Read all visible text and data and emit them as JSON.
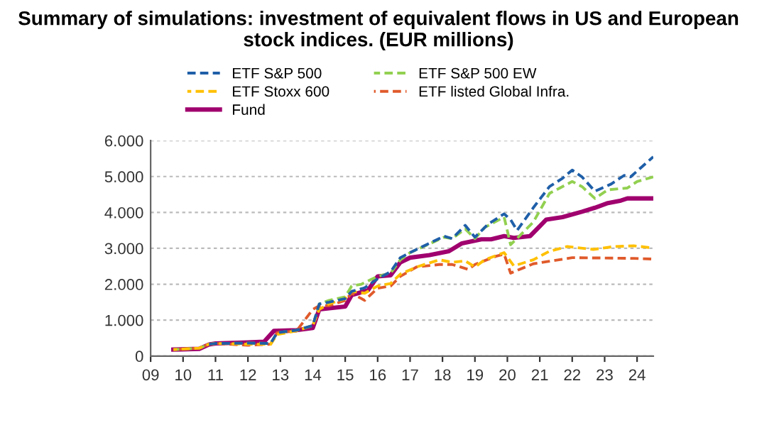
{
  "chart_data": {
    "type": "line",
    "title": "Summary of simulations: investment of equivalent flows in US and European stock indices. (EUR millions)",
    "xlim": [
      2009,
      2024.5
    ],
    "xticks": [
      {
        "value": 2009,
        "label": "09"
      },
      {
        "value": 2010,
        "label": "10"
      },
      {
        "value": 2011,
        "label": "11"
      },
      {
        "value": 2012,
        "label": "12"
      },
      {
        "value": 2013,
        "label": "13"
      },
      {
        "value": 2014,
        "label": "14"
      },
      {
        "value": 2015,
        "label": "15"
      },
      {
        "value": 2016,
        "label": "16"
      },
      {
        "value": 2017,
        "label": "17"
      },
      {
        "value": 2018,
        "label": "18"
      },
      {
        "value": 2019,
        "label": "19"
      },
      {
        "value": 2020,
        "label": "20"
      },
      {
        "value": 2021,
        "label": "21"
      },
      {
        "value": 2022,
        "label": "22"
      },
      {
        "value": 2023,
        "label": "23"
      },
      {
        "value": 2024,
        "label": "24"
      }
    ],
    "ylim": [
      0,
      6000
    ],
    "yticks": [
      0,
      {
        "value": 1000,
        "label": "1.000"
      },
      {
        "value": 2000,
        "label": "2.000"
      },
      {
        "value": 3000,
        "label": "3.000"
      },
      {
        "value": 4000,
        "label": "4.000"
      },
      {
        "value": 5000,
        "label": "5.000"
      },
      {
        "value": 6000,
        "label": "6.000"
      }
    ],
    "grid": "y",
    "legend": "top",
    "marker": "none",
    "series": [
      {
        "name": "ETF S&P 500",
        "color": "#1f5fa8",
        "line_style": "dashed",
        "x": [
          2010.8,
          2011,
          2012,
          2012.7,
          2012.9,
          2013.5,
          2014,
          2014.2,
          2014.5,
          2015,
          2015.2,
          2015.6,
          2016,
          2016.4,
          2016.7,
          2017,
          2018.05,
          2018.3,
          2018.7,
          2019,
          2019.4,
          2019.9,
          2020.1,
          2020.3,
          2020.8,
          2021.3,
          2021.7,
          2022,
          2022.3,
          2022.7,
          2023.2,
          2023.6,
          2023.8,
          2024.5
        ],
        "values": [
          330,
          350,
          360,
          350,
          650,
          720,
          850,
          1450,
          1500,
          1600,
          1800,
          1900,
          2150,
          2350,
          2740,
          2880,
          3340,
          3270,
          3640,
          3310,
          3670,
          3960,
          3800,
          3500,
          4130,
          4720,
          4950,
          5180,
          4990,
          4590,
          4790,
          5030,
          4990,
          5550
        ]
      },
      {
        "name": "ETF S&P 500 EW",
        "color": "#92d050",
        "line_style": "dashed",
        "x": [
          2009.7,
          2010.5,
          2010.8,
          2011,
          2012,
          2012.7,
          2012.9,
          2013.5,
          2014,
          2014.2,
          2014.5,
          2015,
          2015.2,
          2015.5,
          2016,
          2016.4,
          2016.7,
          2017,
          2018.05,
          2018.3,
          2018.7,
          2019,
          2019.3,
          2019.9,
          2020.1,
          2020.8,
          2021.3,
          2021.7,
          2022,
          2022.3,
          2022.7,
          2023.1,
          2023.7,
          2024,
          2024.5
        ],
        "values": [
          180,
          220,
          330,
          350,
          360,
          350,
          650,
          720,
          850,
          1450,
          1550,
          1650,
          1950,
          2000,
          2220,
          2310,
          2680,
          2880,
          3310,
          3270,
          3540,
          3270,
          3580,
          3870,
          3100,
          3730,
          4530,
          4720,
          4860,
          4720,
          4390,
          4630,
          4680,
          4860,
          4990
        ]
      },
      {
        "name": "ETF Stoxx 600",
        "color": "#ffc000",
        "line_style": "dashed",
        "x": [
          2009.7,
          2010.5,
          2010.8,
          2011,
          2012,
          2012.7,
          2012.9,
          2013.5,
          2014,
          2014.2,
          2014.5,
          2015,
          2015.2,
          2015.6,
          2016,
          2016.4,
          2016.7,
          2017.2,
          2017.9,
          2018.3,
          2018.7,
          2019,
          2019.3,
          2019.9,
          2020.2,
          2020.8,
          2021.3,
          2021.85,
          2022.65,
          2023.3,
          2023.9,
          2024.5
        ],
        "values": [
          180,
          220,
          330,
          350,
          330,
          330,
          600,
          700,
          850,
          1300,
          1450,
          1600,
          1800,
          1750,
          1950,
          2020,
          2280,
          2480,
          2680,
          2610,
          2650,
          2480,
          2680,
          2880,
          2510,
          2680,
          2920,
          3050,
          2970,
          3050,
          3070,
          3010
        ]
      },
      {
        "name": "ETF listed Global Infra.",
        "color": "#e05a2b",
        "line_style": "dashed",
        "x": [
          2009.7,
          2010.5,
          2010.8,
          2011,
          2012,
          2012.7,
          2012.9,
          2013.5,
          2014,
          2014.2,
          2014.5,
          2015,
          2015.2,
          2015.6,
          2016,
          2016.4,
          2016.7,
          2017.2,
          2017.9,
          2018.3,
          2018.8,
          2019,
          2019.65,
          2019.9,
          2020.1,
          2020.8,
          2021.3,
          2022,
          2023,
          2023.9,
          2024.5
        ],
        "values": [
          180,
          220,
          330,
          350,
          300,
          330,
          650,
          700,
          1300,
          1400,
          1400,
          1550,
          1750,
          1550,
          1890,
          1950,
          2220,
          2480,
          2550,
          2550,
          2410,
          2550,
          2780,
          2840,
          2310,
          2570,
          2640,
          2740,
          2730,
          2720,
          2700
        ]
      },
      {
        "name": "Fund",
        "color": "#a0006e",
        "line_style": "solid",
        "x": [
          2009.7,
          2010.5,
          2010.8,
          2011,
          2012,
          2012.5,
          2012.8,
          2013.5,
          2014,
          2014.2,
          2014.5,
          2015,
          2015.2,
          2015.7,
          2016,
          2016.4,
          2016.7,
          2017,
          2017.6,
          2018.2,
          2018.6,
          2019.2,
          2019.5,
          2019.9,
          2020.2,
          2020.7,
          2021.2,
          2021.7,
          2022.3,
          2022.7,
          2023.1,
          2023.5,
          2023.7,
          2024.5
        ],
        "values": [
          180,
          200,
          320,
          350,
          380,
          400,
          700,
          720,
          780,
          1300,
          1330,
          1380,
          1700,
          1830,
          2220,
          2250,
          2610,
          2740,
          2810,
          2920,
          3140,
          3250,
          3250,
          3340,
          3290,
          3340,
          3800,
          3870,
          4020,
          4130,
          4260,
          4330,
          4390,
          4390
        ]
      }
    ]
  }
}
